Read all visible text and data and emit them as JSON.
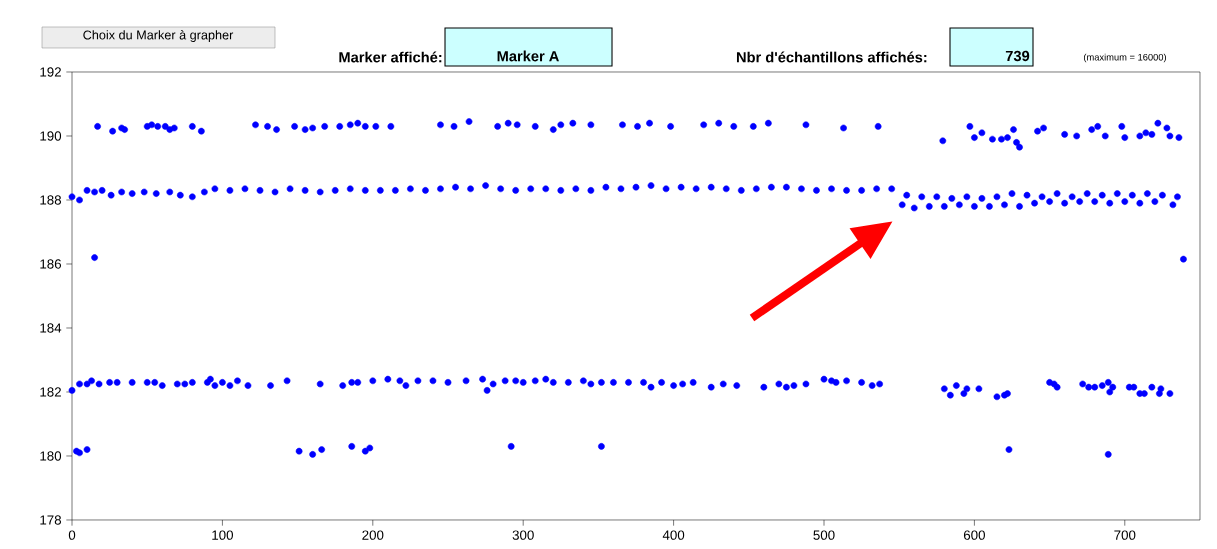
{
  "chart_data": {
    "type": "scatter",
    "annotations": [
      "Choix du Marker à grapher",
      "Marker affiché:",
      "Marker A",
      "Nbr d'échantillons affichés:",
      "739",
      "(maximum = 16000)"
    ],
    "xlim": [
      0,
      750
    ],
    "xticks": [
      0,
      100,
      200,
      300,
      400,
      500,
      600,
      700
    ],
    "ylim": [
      178,
      192
    ],
    "yticks": [
      178,
      180,
      182,
      184,
      186,
      188,
      190,
      192
    ],
    "marker": "circle",
    "grid": false,
    "series": [
      {
        "color": "#0000ff",
        "x": [
          17,
          27,
          33,
          35,
          50,
          53,
          57,
          62,
          65,
          68,
          80,
          86,
          122,
          130,
          136,
          148,
          155,
          160,
          168,
          178,
          185,
          190,
          195,
          202,
          212,
          245,
          254,
          264,
          283,
          290,
          296,
          308,
          320,
          325,
          333,
          345,
          366,
          376,
          384,
          398,
          420,
          430,
          440,
          453,
          463,
          488,
          513,
          536,
          579,
          597,
          600,
          605,
          612,
          618,
          622,
          626,
          628,
          630,
          642,
          646,
          660,
          668,
          678,
          682,
          687,
          698,
          700,
          710,
          714,
          718,
          722,
          728,
          730,
          736,
          0,
          5,
          10,
          15,
          20,
          26,
          33,
          40,
          48,
          56,
          65,
          72,
          80,
          88,
          95,
          105,
          115,
          125,
          135,
          145,
          155,
          165,
          175,
          185,
          195,
          205,
          215,
          225,
          235,
          245,
          255,
          265,
          275,
          285,
          295,
          305,
          315,
          325,
          335,
          345,
          355,
          365,
          375,
          385,
          395,
          405,
          415,
          425,
          435,
          445,
          455,
          465,
          475,
          485,
          495,
          505,
          515,
          525,
          535,
          545,
          555,
          565,
          575,
          585,
          595,
          605,
          615,
          625,
          635,
          645,
          655,
          665,
          675,
          685,
          695,
          705,
          715,
          725,
          735,
          552,
          560,
          570,
          580,
          590,
          600,
          610,
          620,
          630,
          640,
          650,
          660,
          670,
          680,
          690,
          700,
          710,
          720,
          732,
          15,
          739,
          0,
          5,
          10,
          13,
          18,
          25,
          30,
          40,
          50,
          55,
          60,
          70,
          75,
          80,
          90,
          92,
          95,
          100,
          105,
          110,
          117,
          132,
          143,
          165,
          180,
          186,
          190,
          200,
          210,
          218,
          222,
          230,
          240,
          250,
          262,
          273,
          276,
          280,
          288,
          295,
          300,
          308,
          315,
          320,
          330,
          340,
          345,
          352,
          360,
          370,
          380,
          385,
          392,
          400,
          406,
          413,
          425,
          433,
          442,
          460,
          470,
          475,
          480,
          488,
          500,
          505,
          508,
          515,
          525,
          532,
          537,
          580,
          584,
          588,
          593,
          595,
          603,
          615,
          620,
          622,
          650,
          653,
          655,
          672,
          676,
          680,
          685,
          689,
          690,
          692,
          703,
          706,
          710,
          713,
          718,
          723,
          724,
          730,
          3,
          5,
          10,
          151,
          160,
          166,
          186,
          195,
          198,
          292,
          352,
          623,
          689
        ],
        "values": [
          190.3,
          190.15,
          190.25,
          190.2,
          190.3,
          190.35,
          190.3,
          190.3,
          190.2,
          190.25,
          190.3,
          190.15,
          190.35,
          190.3,
          190.2,
          190.3,
          190.2,
          190.25,
          190.3,
          190.3,
          190.35,
          190.4,
          190.3,
          190.3,
          190.3,
          190.35,
          190.3,
          190.45,
          190.3,
          190.4,
          190.35,
          190.3,
          190.2,
          190.35,
          190.4,
          190.35,
          190.35,
          190.3,
          190.4,
          190.3,
          190.35,
          190.4,
          190.3,
          190.3,
          190.4,
          190.35,
          190.25,
          190.3,
          189.85,
          190.3,
          189.95,
          190.1,
          189.9,
          189.9,
          189.95,
          190.2,
          189.8,
          189.65,
          190.15,
          190.25,
          190.05,
          190.0,
          190.2,
          190.3,
          190.0,
          190.3,
          189.95,
          190.0,
          190.1,
          190.05,
          190.4,
          190.25,
          190.0,
          189.95,
          188.1,
          188.0,
          188.3,
          188.25,
          188.3,
          188.15,
          188.25,
          188.2,
          188.25,
          188.2,
          188.25,
          188.15,
          188.1,
          188.25,
          188.35,
          188.3,
          188.35,
          188.3,
          188.25,
          188.35,
          188.3,
          188.25,
          188.3,
          188.35,
          188.3,
          188.3,
          188.3,
          188.35,
          188.3,
          188.35,
          188.4,
          188.35,
          188.45,
          188.35,
          188.3,
          188.35,
          188.35,
          188.3,
          188.35,
          188.3,
          188.4,
          188.35,
          188.4,
          188.45,
          188.35,
          188.4,
          188.35,
          188.4,
          188.35,
          188.3,
          188.35,
          188.4,
          188.4,
          188.35,
          188.3,
          188.35,
          188.3,
          188.3,
          188.35,
          188.35,
          188.15,
          188.1,
          188.1,
          188.05,
          188.1,
          188.05,
          188.1,
          188.2,
          188.15,
          188.1,
          188.2,
          188.1,
          188.2,
          188.15,
          188.2,
          188.15,
          188.2,
          188.15,
          188.1,
          187.85,
          187.75,
          187.8,
          187.8,
          187.85,
          187.8,
          187.8,
          187.85,
          187.8,
          187.9,
          187.95,
          187.9,
          187.95,
          187.95,
          187.9,
          187.95,
          187.9,
          187.95,
          187.85,
          186.2,
          186.15,
          182.05,
          182.25,
          182.25,
          182.35,
          182.25,
          182.3,
          182.3,
          182.3,
          182.3,
          182.3,
          182.2,
          182.25,
          182.25,
          182.3,
          182.3,
          182.4,
          182.2,
          182.3,
          182.2,
          182.35,
          182.2,
          182.2,
          182.35,
          182.25,
          182.2,
          182.3,
          182.3,
          182.35,
          182.4,
          182.35,
          182.2,
          182.35,
          182.35,
          182.3,
          182.35,
          182.4,
          182.05,
          182.25,
          182.35,
          182.35,
          182.3,
          182.35,
          182.4,
          182.3,
          182.3,
          182.35,
          182.25,
          182.3,
          182.3,
          182.3,
          182.3,
          182.15,
          182.3,
          182.2,
          182.25,
          182.3,
          182.15,
          182.25,
          182.2,
          182.15,
          182.25,
          182.15,
          182.2,
          182.25,
          182.4,
          182.35,
          182.3,
          182.35,
          182.3,
          182.2,
          182.25,
          182.1,
          181.9,
          182.2,
          181.95,
          182.1,
          182.1,
          181.85,
          181.9,
          181.95,
          182.3,
          182.25,
          182.15,
          182.25,
          182.15,
          182.15,
          182.2,
          182.3,
          182.0,
          182.15,
          182.15,
          182.15,
          181.95,
          181.95,
          182.15,
          181.95,
          182.1,
          181.95,
          180.15,
          180.1,
          180.2,
          180.15,
          180.05,
          180.2,
          180.3,
          180.15,
          180.25,
          180.3,
          180.3,
          180.2,
          180.05
        ]
      }
    ]
  }
}
